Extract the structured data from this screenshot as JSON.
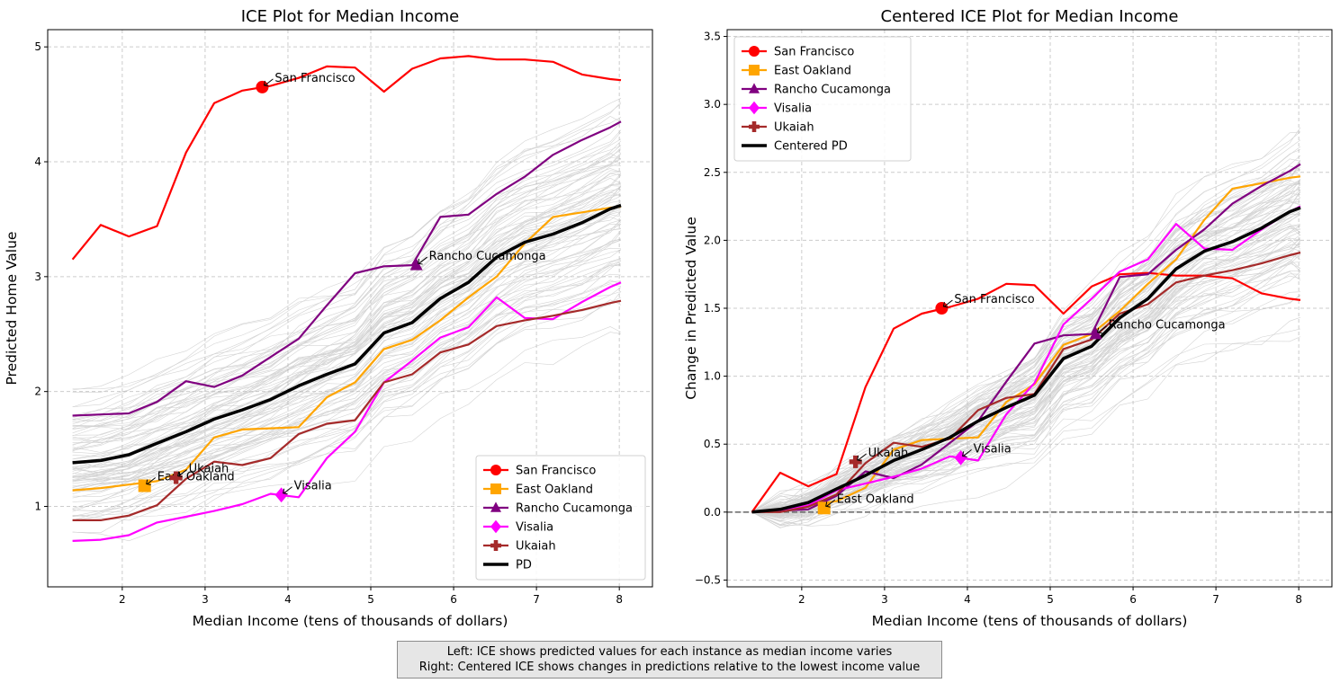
{
  "caption": {
    "line1": "Left: ICE shows predicted values for each instance as median income varies",
    "line2": "Right: Centered ICE shows changes in predictions relative to the lowest income value"
  },
  "colors": {
    "san_francisco": "#ff0000",
    "east_oakland": "#ffa500",
    "rancho": "#800080",
    "visalia": "#ff00ff",
    "ukaiah": "#a52a2a",
    "pd": "#000000",
    "background_lines": "#b0b0b0"
  },
  "chart_data": [
    {
      "type": "line",
      "title": "ICE Plot for Median Income",
      "xlabel": "Median Income (tens of thousands of dollars)",
      "ylabel": "Predicted Home Value",
      "xlim": [
        1.1,
        8.4
      ],
      "ylim": [
        0.3,
        5.15
      ],
      "xticks": [
        2,
        3,
        4,
        5,
        6,
        7,
        8
      ],
      "yticks": [
        1,
        2,
        3,
        4,
        5
      ],
      "grid": true,
      "legend_position": "lower-right",
      "x": [
        1.4,
        1.74,
        2.08,
        2.42,
        2.77,
        3.11,
        3.45,
        3.79,
        4.13,
        4.47,
        4.81,
        5.16,
        5.5,
        5.84,
        6.18,
        6.52,
        6.86,
        7.2,
        7.55,
        7.89,
        8.02
      ],
      "series": [
        {
          "name": "San Francisco",
          "color_key": "san_francisco",
          "marker": "circle",
          "values": [
            3.15,
            3.45,
            3.35,
            3.44,
            4.08,
            4.51,
            4.62,
            4.66,
            4.73,
            4.83,
            4.82,
            4.61,
            4.81,
            4.9,
            4.92,
            4.89,
            4.89,
            4.87,
            4.76,
            4.72,
            4.71
          ],
          "point": {
            "x": 3.69,
            "y": 4.65
          },
          "label": "San Francisco"
        },
        {
          "name": "East Oakland",
          "color_key": "east_oakland",
          "marker": "square",
          "values": [
            1.14,
            1.16,
            1.19,
            1.22,
            1.32,
            1.6,
            1.67,
            1.68,
            1.69,
            1.95,
            2.08,
            2.37,
            2.45,
            2.62,
            2.82,
            3.0,
            3.29,
            3.52,
            3.56,
            3.6,
            3.61
          ],
          "point": {
            "x": 2.27,
            "y": 1.18
          },
          "label": "East Oakland"
        },
        {
          "name": "Rancho Cucamonga",
          "color_key": "rancho",
          "marker": "triangle",
          "values": [
            1.79,
            1.8,
            1.81,
            1.91,
            2.09,
            2.04,
            2.14,
            2.3,
            2.46,
            2.75,
            3.03,
            3.09,
            3.1,
            3.52,
            3.54,
            3.72,
            3.87,
            4.06,
            4.19,
            4.3,
            4.35
          ],
          "point": {
            "x": 5.55,
            "y": 3.1
          },
          "label": "Rancho Cucamonga"
        },
        {
          "name": "Visalia",
          "color_key": "visalia",
          "marker": "diamond",
          "values": [
            0.7,
            0.71,
            0.75,
            0.86,
            0.91,
            0.96,
            1.02,
            1.11,
            1.08,
            1.42,
            1.65,
            2.08,
            2.27,
            2.47,
            2.56,
            2.82,
            2.64,
            2.63,
            2.78,
            2.91,
            2.95
          ],
          "point": {
            "x": 3.92,
            "y": 1.1
          },
          "label": "Visalia"
        },
        {
          "name": "Ukaiah",
          "color_key": "ukaiah",
          "marker": "plus",
          "values": [
            0.88,
            0.88,
            0.92,
            1.01,
            1.24,
            1.39,
            1.36,
            1.42,
            1.63,
            1.72,
            1.75,
            2.08,
            2.15,
            2.34,
            2.41,
            2.57,
            2.62,
            2.66,
            2.71,
            2.77,
            2.79
          ],
          "point": {
            "x": 2.65,
            "y": 1.25
          },
          "label": "Ukaiah"
        },
        {
          "name": "PD",
          "color_key": "pd",
          "marker": "none",
          "values": [
            1.38,
            1.4,
            1.45,
            1.55,
            1.65,
            1.76,
            1.84,
            1.93,
            2.05,
            2.15,
            2.24,
            2.51,
            2.6,
            2.81,
            2.95,
            3.17,
            3.3,
            3.37,
            3.47,
            3.59,
            3.62
          ]
        }
      ]
    },
    {
      "type": "line",
      "title": "Centered ICE Plot for Median Income",
      "xlabel": "Median Income (tens of thousands of dollars)",
      "ylabel": "Change in Predicted Value",
      "xlim": [
        1.1,
        8.4
      ],
      "ylim": [
        -0.55,
        3.55
      ],
      "xticks": [
        2,
        3,
        4,
        5,
        6,
        7,
        8
      ],
      "yticks": [
        -0.5,
        0.0,
        0.5,
        1.0,
        1.5,
        2.0,
        2.5,
        3.0,
        3.5
      ],
      "ytick_labels": [
        "−0.5",
        "0.0",
        "0.5",
        "1.0",
        "1.5",
        "2.0",
        "2.5",
        "3.0",
        "3.5"
      ],
      "grid": true,
      "zero_line": true,
      "legend_position": "top-left",
      "x": [
        1.4,
        1.74,
        2.08,
        2.42,
        2.77,
        3.11,
        3.45,
        3.79,
        4.13,
        4.47,
        4.81,
        5.16,
        5.5,
        5.84,
        6.18,
        6.52,
        6.86,
        7.2,
        7.55,
        7.89,
        8.02
      ],
      "series": [
        {
          "name": "San Francisco",
          "color_key": "san_francisco",
          "marker": "circle",
          "values": [
            0.0,
            0.29,
            0.19,
            0.28,
            0.92,
            1.35,
            1.46,
            1.51,
            1.57,
            1.68,
            1.67,
            1.46,
            1.66,
            1.75,
            1.76,
            1.74,
            1.74,
            1.72,
            1.61,
            1.57,
            1.56
          ],
          "point": {
            "x": 3.69,
            "y": 1.5
          },
          "label": "San Francisco"
        },
        {
          "name": "East Oakland",
          "color_key": "east_oakland",
          "marker": "square",
          "values": [
            0.0,
            0.02,
            0.05,
            0.08,
            0.18,
            0.46,
            0.53,
            0.54,
            0.55,
            0.81,
            0.94,
            1.23,
            1.31,
            1.48,
            1.68,
            1.86,
            2.15,
            2.38,
            2.42,
            2.46,
            2.47
          ],
          "point": {
            "x": 2.27,
            "y": 0.03
          },
          "label": "East Oakland"
        },
        {
          "name": "Rancho Cucamonga",
          "color_key": "rancho",
          "marker": "triangle",
          "values": [
            0.0,
            0.01,
            0.02,
            0.12,
            0.3,
            0.25,
            0.35,
            0.51,
            0.67,
            0.96,
            1.24,
            1.3,
            1.31,
            1.73,
            1.75,
            1.93,
            2.08,
            2.27,
            2.4,
            2.51,
            2.56
          ],
          "point": {
            "x": 5.55,
            "y": 1.31
          },
          "label": "Rancho Cucamonga"
        },
        {
          "name": "Visalia",
          "color_key": "visalia",
          "marker": "diamond",
          "values": [
            0.0,
            0.01,
            0.05,
            0.16,
            0.21,
            0.26,
            0.32,
            0.41,
            0.38,
            0.72,
            0.95,
            1.38,
            1.57,
            1.77,
            1.86,
            2.12,
            1.94,
            1.93,
            2.08,
            2.21,
            2.25
          ],
          "point": {
            "x": 3.92,
            "y": 0.4
          },
          "label": "Visalia"
        },
        {
          "name": "Ukaiah",
          "color_key": "ukaiah",
          "marker": "plus",
          "values": [
            0.0,
            0.0,
            0.04,
            0.13,
            0.36,
            0.51,
            0.48,
            0.54,
            0.75,
            0.84,
            0.87,
            1.2,
            1.27,
            1.46,
            1.53,
            1.69,
            1.74,
            1.78,
            1.83,
            1.89,
            1.91
          ],
          "point": {
            "x": 2.65,
            "y": 0.37
          },
          "label": "Ukaiah"
        },
        {
          "name": "Centered PD",
          "color_key": "pd",
          "marker": "none",
          "values": [
            0.0,
            0.02,
            0.07,
            0.17,
            0.27,
            0.38,
            0.46,
            0.55,
            0.67,
            0.77,
            0.86,
            1.13,
            1.22,
            1.43,
            1.57,
            1.79,
            1.92,
            1.99,
            2.09,
            2.21,
            2.24
          ]
        }
      ]
    }
  ]
}
